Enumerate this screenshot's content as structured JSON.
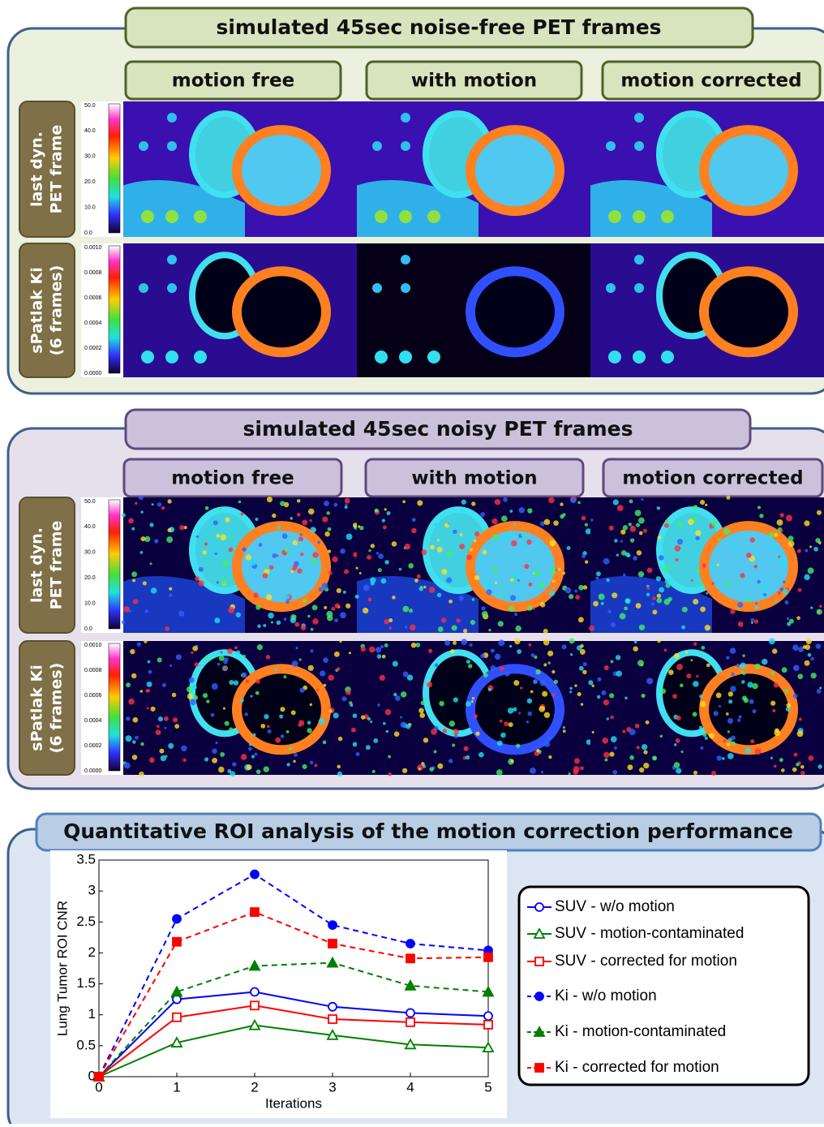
{
  "panels": [
    {
      "title": "simulated 45sec noise-free PET frames",
      "columns": [
        "motion free",
        "with motion",
        "motion corrected"
      ],
      "rows": [
        {
          "label": [
            "last dyn.",
            "PET frame"
          ],
          "colorbar": [
            "50.0",
            "40.0",
            "30.0",
            "20.0",
            "10.0",
            "0.0"
          ]
        },
        {
          "label": [
            "sPatlak Ki",
            "(6 frames)"
          ],
          "colorbar": [
            "0.0010",
            "0.0008",
            "0.0006",
            "0.0004",
            "0.0002",
            "0.0000"
          ]
        }
      ]
    },
    {
      "title": "simulated 45sec noisy PET frames",
      "columns": [
        "motion free",
        "with motion",
        "motion corrected"
      ],
      "rows": [
        {
          "label": [
            "last dyn.",
            "PET frame"
          ],
          "colorbar": [
            "50.0",
            "40.0",
            "30.0",
            "20.0",
            "10.0",
            "0.0"
          ]
        },
        {
          "label": [
            "sPatlak Ki",
            "(6 frames)"
          ],
          "colorbar": [
            "0.0010",
            "0.0008",
            "0.0006",
            "0.0004",
            "0.0002",
            "0.0000"
          ]
        }
      ]
    },
    {
      "title": "Quantitative ROI analysis of the motion correction performance"
    }
  ],
  "chart_data": {
    "type": "line",
    "x": [
      0,
      1,
      2,
      3,
      4,
      5
    ],
    "xlabel": "Iterations",
    "ylabel": "Lung Tumor ROI CNR",
    "xlim": [
      0,
      5
    ],
    "xticks": [
      0,
      1,
      2,
      3,
      4,
      5
    ],
    "ylim": [
      0,
      3.5
    ],
    "yticks": [
      0,
      0.5,
      1,
      1.5,
      2,
      2.5,
      3,
      3.5
    ],
    "series": [
      {
        "name": "SUV - w/o motion",
        "color": "#0000ff",
        "linestyle": "solid",
        "marker": "circle",
        "filled": false,
        "values": [
          0,
          1.25,
          1.37,
          1.13,
          1.03,
          0.98
        ]
      },
      {
        "name": "SUV - motion-contaminated",
        "color": "#008000",
        "linestyle": "solid",
        "marker": "triangle",
        "filled": false,
        "values": [
          0,
          0.55,
          0.83,
          0.67,
          0.52,
          0.47
        ]
      },
      {
        "name": "SUV - corrected for motion",
        "color": "#ff0000",
        "linestyle": "solid",
        "marker": "square",
        "filled": false,
        "values": [
          0,
          0.96,
          1.15,
          0.93,
          0.88,
          0.84
        ]
      },
      {
        "name": "Ki - w/o motion",
        "color": "#0000ff",
        "linestyle": "dashed",
        "marker": "circle",
        "filled": true,
        "values": [
          0,
          2.55,
          3.27,
          2.45,
          2.15,
          2.04
        ]
      },
      {
        "name": "Ki - motion-contaminated",
        "color": "#008000",
        "linestyle": "dashed",
        "marker": "triangle",
        "filled": true,
        "values": [
          0,
          1.37,
          1.79,
          1.84,
          1.47,
          1.37
        ]
      },
      {
        "name": "Ki - corrected for motion",
        "color": "#ff0000",
        "linestyle": "dashed",
        "marker": "square",
        "filled": true,
        "values": [
          0,
          2.18,
          2.66,
          2.15,
          1.91,
          1.93
        ]
      }
    ]
  }
}
